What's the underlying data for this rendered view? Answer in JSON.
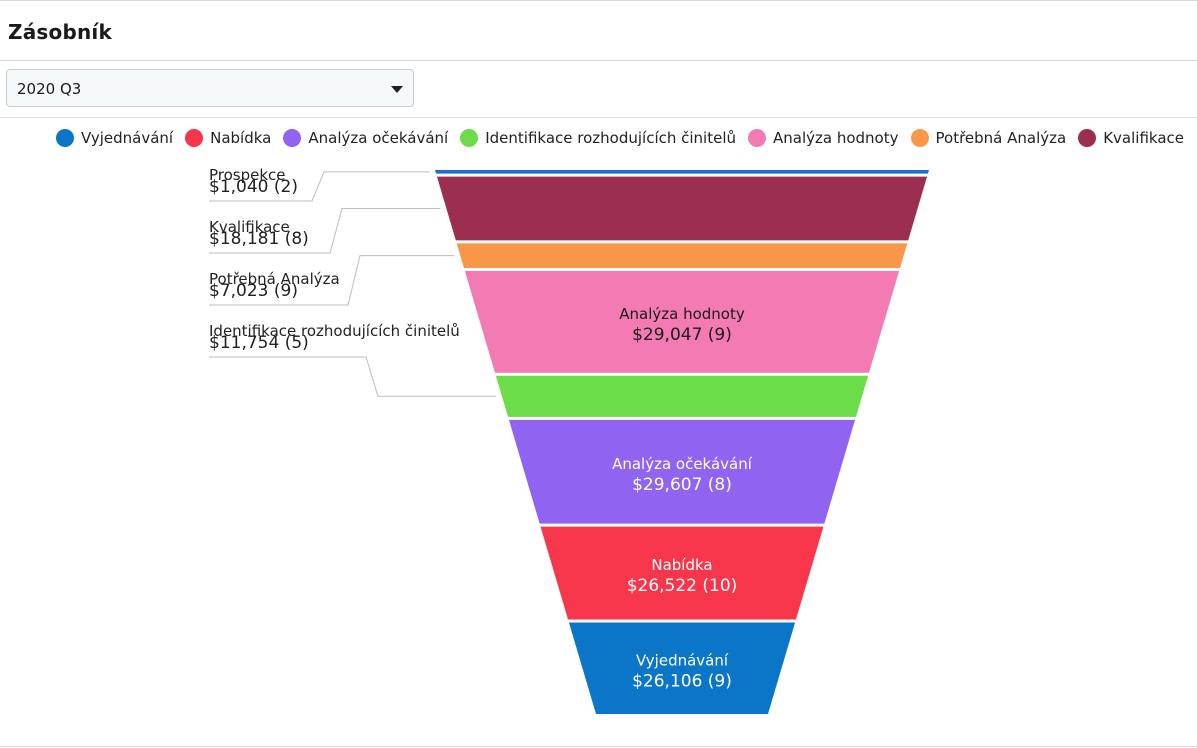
{
  "page": {
    "title": "Zásobník",
    "filter": {
      "selected": "2020 Q3"
    }
  },
  "colors": {
    "Prospekce": "#1f6fd0",
    "Kvalifikace": "#9c2e50",
    "Potřebná Analýza": "#fa9648",
    "Analýza hodnoty": "#f47ab3",
    "Identifikace rozhodujících činitelů": "#6bdd48",
    "Analýza očekávání": "#9063f0",
    "Nabídka": "#f7364b",
    "Vyjednávání": "#0b76c8"
  },
  "legend": [
    {
      "label": "Vyjednávání",
      "icon": "circle-icon"
    },
    {
      "label": "Nabídka",
      "icon": "circle-icon"
    },
    {
      "label": "Analýza očekávání",
      "icon": "circle-icon"
    },
    {
      "label": "Identifikace rozhodujících činitelů",
      "icon": "circle-icon"
    },
    {
      "label": "Analýza hodnoty",
      "icon": "circle-icon"
    },
    {
      "label": "Potřebná Analýza",
      "icon": "circle-icon"
    },
    {
      "label": "Kvalifikace",
      "icon": "circle-icon"
    }
  ],
  "chart_data": {
    "type": "funnel",
    "legend_placement": "top",
    "stages": [
      {
        "name": "Prospekce",
        "value": 1040,
        "count": 2,
        "label": "$1,040 (2)"
      },
      {
        "name": "Kvalifikace",
        "value": 18181,
        "count": 8,
        "label": "$18,181 (8)"
      },
      {
        "name": "Potřebná Analýza",
        "value": 7023,
        "count": 9,
        "label": "$7,023 (9)"
      },
      {
        "name": "Analýza hodnoty",
        "value": 29047,
        "count": 9,
        "label": "$29,047 (9)"
      },
      {
        "name": "Identifikace rozhodujících činitelů",
        "value": 11754,
        "count": 5,
        "label": "$11,754 (5)"
      },
      {
        "name": "Analýza očekávání",
        "value": 29607,
        "count": 8,
        "label": "$29,607 (8)"
      },
      {
        "name": "Nabídka",
        "value": 26522,
        "count": 10,
        "label": "$26,522 (10)"
      },
      {
        "name": "Vyjednávání",
        "value": 26106,
        "count": 9,
        "label": "$26,106 (9)"
      }
    ]
  }
}
